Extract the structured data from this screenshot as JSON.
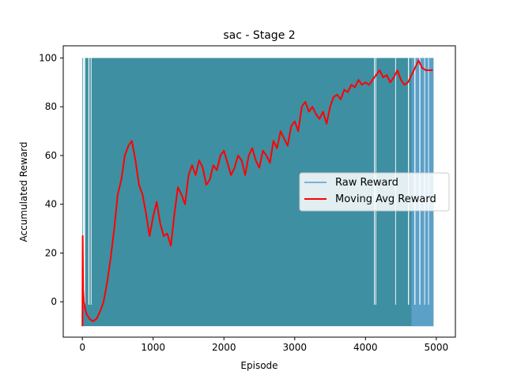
{
  "chart_data": {
    "type": "line",
    "title": "sac - Stage 2",
    "xlabel": "Episode",
    "ylabel": "Accumulated Reward",
    "xlim": [
      -270,
      5270
    ],
    "ylim": [
      -14.5,
      105
    ],
    "x_ticks": [
      0,
      1000,
      2000,
      3000,
      4000,
      5000
    ],
    "x_tick_labels": [
      "0",
      "1000",
      "2000",
      "3000",
      "4000",
      "5000"
    ],
    "y_ticks": [
      0,
      20,
      40,
      60,
      80,
      100
    ],
    "y_tick_labels": [
      "0",
      "20",
      "40",
      "60",
      "80",
      "100"
    ],
    "legend_position": "center-right",
    "grid": false,
    "series": [
      {
        "name": "Raw Reward",
        "color": "#1f77b4",
        "style": "dense band oscillating between min and max",
        "x_range": [
          0,
          4960
        ],
        "min": -10,
        "max": 100,
        "gaps": [
          {
            "x": [
              125,
              4130
            ],
            "top": 100,
            "note": "top band present"
          },
          {
            "x": [
              4130,
              4650
            ],
            "top": 100
          }
        ]
      },
      {
        "name": "Moving Avg Reward",
        "color": "#ff0000",
        "points": [
          [
            0,
            -10
          ],
          [
            5,
            27
          ],
          [
            12,
            5
          ],
          [
            20,
            0
          ],
          [
            40,
            -3
          ],
          [
            60,
            -5
          ],
          [
            80,
            -6
          ],
          [
            100,
            -7
          ],
          [
            150,
            -8
          ],
          [
            200,
            -7
          ],
          [
            250,
            -4
          ],
          [
            300,
            0
          ],
          [
            350,
            8
          ],
          [
            400,
            18
          ],
          [
            450,
            30
          ],
          [
            500,
            44
          ],
          [
            550,
            50
          ],
          [
            600,
            60
          ],
          [
            650,
            64
          ],
          [
            700,
            66
          ],
          [
            750,
            58
          ],
          [
            800,
            48
          ],
          [
            850,
            44
          ],
          [
            900,
            36
          ],
          [
            950,
            27
          ],
          [
            1000,
            35
          ],
          [
            1050,
            41
          ],
          [
            1100,
            32
          ],
          [
            1150,
            27
          ],
          [
            1200,
            28
          ],
          [
            1250,
            23
          ],
          [
            1300,
            36
          ],
          [
            1350,
            47
          ],
          [
            1400,
            44
          ],
          [
            1450,
            40
          ],
          [
            1500,
            52
          ],
          [
            1550,
            56
          ],
          [
            1600,
            52
          ],
          [
            1650,
            58
          ],
          [
            1700,
            55
          ],
          [
            1750,
            48
          ],
          [
            1800,
            50
          ],
          [
            1850,
            56
          ],
          [
            1900,
            54
          ],
          [
            1950,
            60
          ],
          [
            2000,
            62
          ],
          [
            2050,
            57
          ],
          [
            2100,
            52
          ],
          [
            2150,
            55
          ],
          [
            2200,
            60
          ],
          [
            2250,
            58
          ],
          [
            2300,
            52
          ],
          [
            2350,
            60
          ],
          [
            2400,
            63
          ],
          [
            2450,
            58
          ],
          [
            2500,
            55
          ],
          [
            2550,
            62
          ],
          [
            2600,
            60
          ],
          [
            2650,
            57
          ],
          [
            2700,
            66
          ],
          [
            2750,
            63
          ],
          [
            2800,
            70
          ],
          [
            2850,
            67
          ],
          [
            2900,
            64
          ],
          [
            2950,
            72
          ],
          [
            3000,
            74
          ],
          [
            3050,
            70
          ],
          [
            3100,
            80
          ],
          [
            3150,
            82
          ],
          [
            3200,
            78
          ],
          [
            3250,
            80
          ],
          [
            3300,
            77
          ],
          [
            3350,
            75
          ],
          [
            3400,
            78
          ],
          [
            3450,
            73
          ],
          [
            3500,
            80
          ],
          [
            3550,
            84
          ],
          [
            3600,
            85
          ],
          [
            3650,
            83
          ],
          [
            3700,
            87
          ],
          [
            3750,
            86
          ],
          [
            3800,
            89
          ],
          [
            3850,
            88
          ],
          [
            3900,
            91
          ],
          [
            3950,
            89
          ],
          [
            4000,
            90
          ],
          [
            4050,
            89
          ],
          [
            4100,
            91
          ],
          [
            4150,
            93
          ],
          [
            4200,
            95
          ],
          [
            4250,
            92
          ],
          [
            4300,
            93
          ],
          [
            4350,
            90
          ],
          [
            4400,
            92
          ],
          [
            4450,
            95
          ],
          [
            4500,
            91
          ],
          [
            4550,
            89
          ],
          [
            4600,
            90
          ],
          [
            4650,
            93
          ],
          [
            4700,
            96
          ],
          [
            4750,
            99
          ],
          [
            4800,
            96
          ],
          [
            4850,
            95
          ],
          [
            4900,
            95
          ],
          [
            4950,
            95
          ]
        ]
      }
    ]
  }
}
